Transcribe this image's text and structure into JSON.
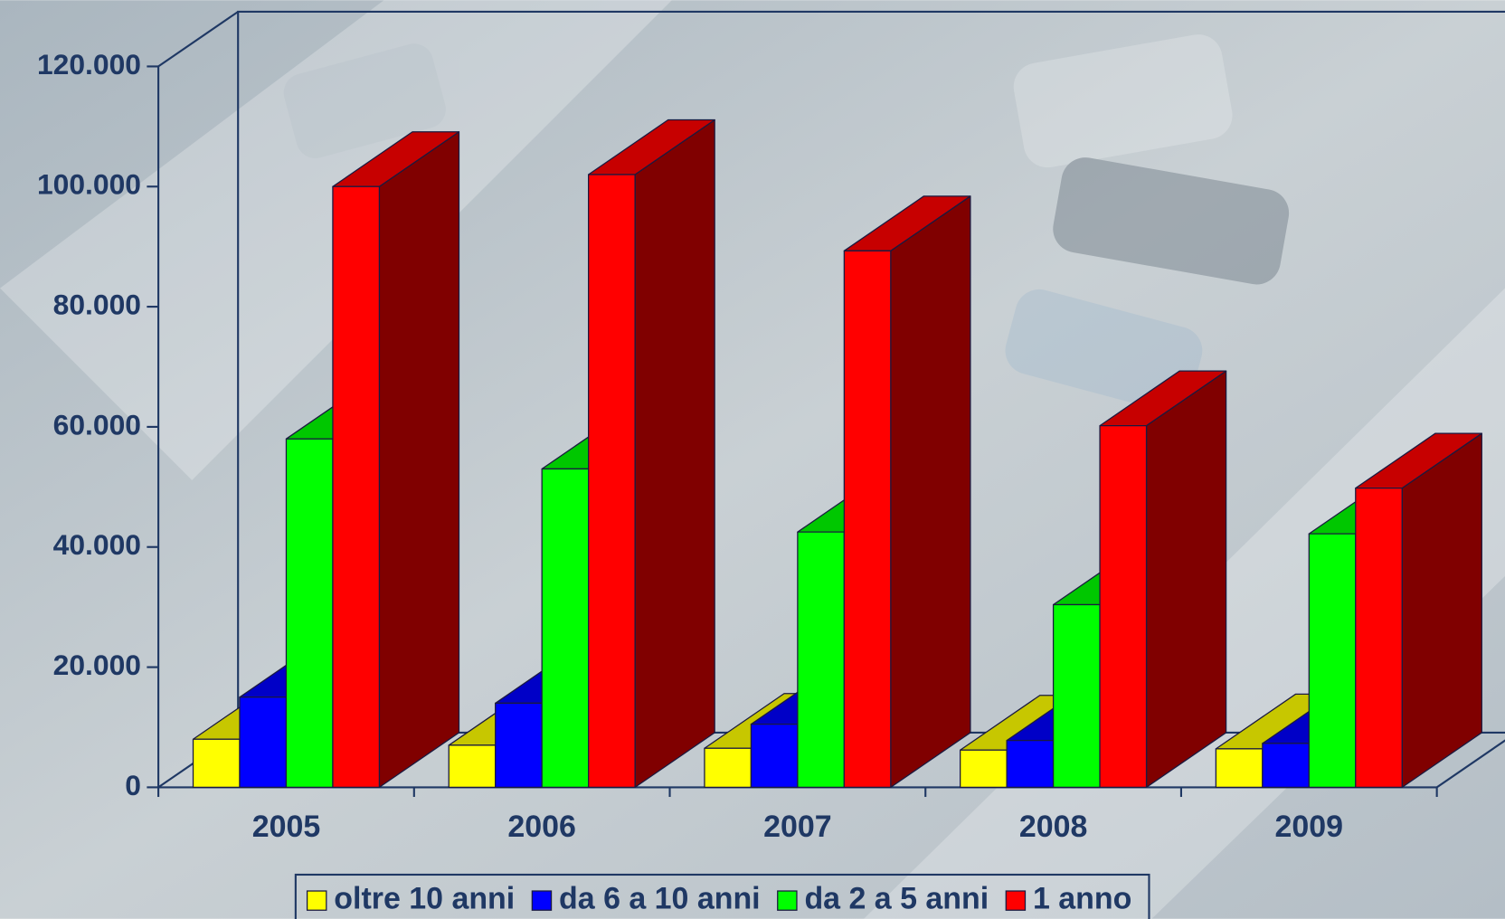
{
  "chart_data": {
    "type": "bar3d",
    "categories": [
      "2005",
      "2006",
      "2007",
      "2008",
      "2009"
    ],
    "series": [
      {
        "name": "oltre 10 anni",
        "color": "#ffff00",
        "values": [
          8000,
          7000,
          6500,
          6200,
          6400
        ]
      },
      {
        "name": "da 6 a 10 anni",
        "color": "#0000ff",
        "values": [
          15000,
          14000,
          10500,
          7800,
          7300
        ]
      },
      {
        "name": "da 2 a 5 anni",
        "color": "#00ff00",
        "values": [
          58000,
          53000,
          42500,
          30400,
          42200
        ]
      },
      {
        "name": "1 anno",
        "color": "#ff0000",
        "values": [
          100000,
          102000,
          89300,
          60200,
          49800
        ]
      }
    ],
    "ylim": [
      0,
      120000
    ],
    "yticks": [
      {
        "value": 0,
        "label": "0"
      },
      {
        "value": 20000,
        "label": "20.000"
      },
      {
        "value": 40000,
        "label": "40.000"
      },
      {
        "value": 60000,
        "label": "60.000"
      },
      {
        "value": 80000,
        "label": "80.000"
      },
      {
        "value": 100000,
        "label": "100.000"
      },
      {
        "value": 120000,
        "label": "120.000"
      }
    ],
    "legend": "bottom"
  }
}
